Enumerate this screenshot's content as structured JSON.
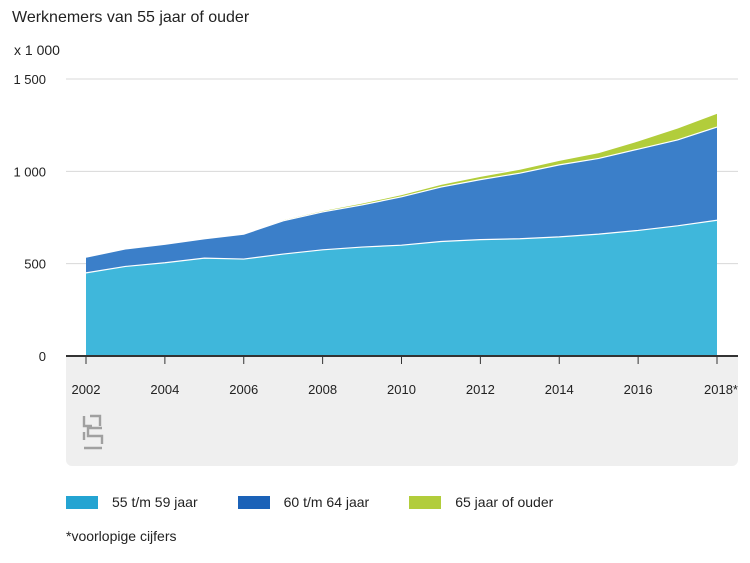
{
  "title": "Werknemers van 55 jaar of ouder",
  "unit": "x 1 000",
  "note": "*voorlopige cijfers",
  "logo": {
    "icon": "cbs-logo-icon",
    "color": "#a0a0a0"
  },
  "colors": {
    "s1": "#3fb7db",
    "s2": "#3b7fc9",
    "s3": "#b2cd3b",
    "line": "#ffffff",
    "grid": "#d8d8d8",
    "axis": "#333333"
  },
  "chart_data": {
    "type": "area",
    "stacked": true,
    "x": [
      2002,
      2003,
      2004,
      2005,
      2006,
      2007,
      2008,
      2009,
      2010,
      2011,
      2012,
      2013,
      2014,
      2015,
      2016,
      2017,
      2018
    ],
    "x_tick_labels": [
      "2002",
      "2004",
      "2006",
      "2008",
      "2010",
      "2012",
      "2014",
      "2016",
      "2018*"
    ],
    "x_tick_values": [
      2002,
      2004,
      2006,
      2008,
      2010,
      2012,
      2014,
      2016,
      2018
    ],
    "ylim": [
      0,
      1500
    ],
    "y_ticks": [
      0,
      500,
      1000,
      1500
    ],
    "y_tick_labels": [
      "0",
      "500",
      "1 000",
      "1 500"
    ],
    "grid": true,
    "legend_position": "bottom",
    "series": [
      {
        "name": "55 t/m 59 jaar",
        "values": [
          450,
          485,
          505,
          530,
          525,
          552,
          575,
          590,
          600,
          620,
          630,
          635,
          645,
          660,
          680,
          705,
          735
        ]
      },
      {
        "name": "60 t/m 64 jaar",
        "values": [
          85,
          95,
          100,
          105,
          135,
          180,
          205,
          228,
          262,
          295,
          325,
          355,
          390,
          410,
          440,
          465,
          505
        ]
      },
      {
        "name": "65 jaar of ouder",
        "values": [
          2,
          2,
          3,
          3,
          4,
          6,
          8,
          10,
          12,
          15,
          18,
          22,
          25,
          32,
          45,
          65,
          75
        ]
      }
    ]
  }
}
